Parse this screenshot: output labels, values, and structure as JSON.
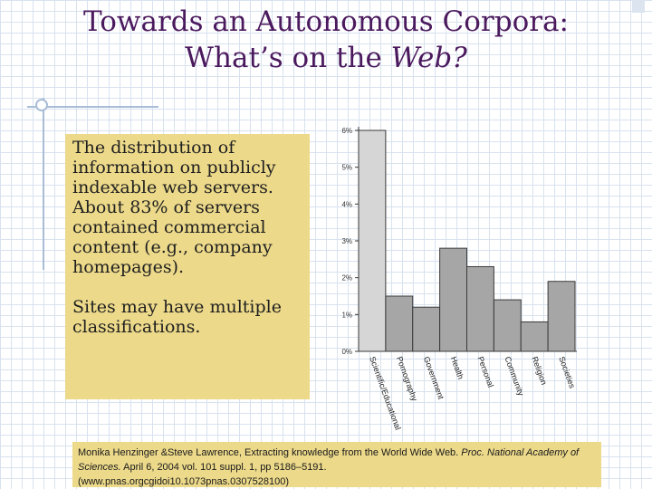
{
  "slide": {
    "title_line1": "Towards an Autonomous Corpora:",
    "title_line2_prefix": "What’s on the ",
    "title_line2_italic": "Web?"
  },
  "content": {
    "paragraph1": "The distribution of information on publicly indexable web servers. About 83% of servers contained commercial content (e.g., company homepages).",
    "paragraph2": "Sites may have multiple classifications."
  },
  "chart_data": {
    "type": "bar",
    "categories": [
      "Scientific/Educational",
      "Pornography",
      "Government",
      "Health",
      "Personal",
      "Community",
      "Religion",
      "Societies"
    ],
    "values": [
      6.0,
      1.5,
      1.2,
      2.8,
      2.3,
      1.4,
      0.8,
      1.9
    ],
    "ylim": [
      0,
      6
    ],
    "yticks": [
      "0%",
      "1%",
      "2%",
      "3%",
      "4%",
      "5%",
      "6%"
    ],
    "colors": {
      "highlight": "#d6d6d6",
      "normal": "#a6a6a6",
      "stroke": "#3a3a3a"
    }
  },
  "citation": {
    "part1": "Monika Henzinger &Steve Lawrence, Extracting knowledge from the World Wide Web. ",
    "part2_italic": "Proc. National Academy of Sciences.",
    "part3": " April 6, 2004 vol. 101 suppl. 1, pp 5186–5191.",
    "part4": "(www.pnas.orgcgidoi10.1073pnas.0307528100)"
  }
}
